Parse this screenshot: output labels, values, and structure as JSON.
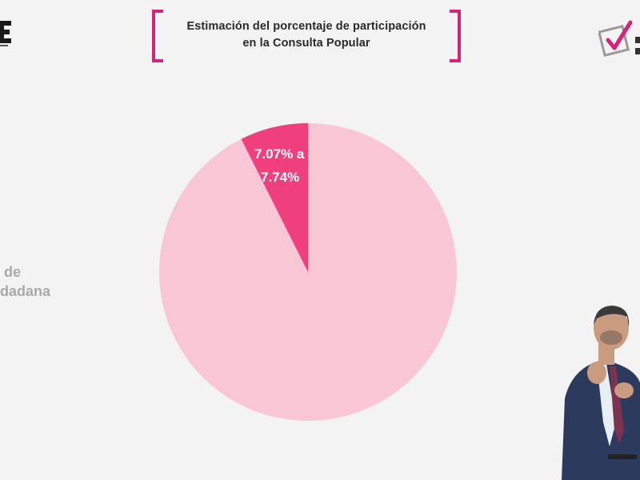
{
  "header": {
    "title_line1": "Estimación del porcentaje de participación",
    "title_line2": "en la Consulta Popular"
  },
  "side_label": {
    "line1": "ntaje de",
    "line2": "n ciudadana"
  },
  "colors": {
    "accent": "#d6247a",
    "pie_main": "#f9c6d6",
    "pie_slice": "#ef3f7d"
  },
  "chart_data": {
    "type": "pie",
    "slices": [
      {
        "label_line1": "7.07% a",
        "label_line2": "7.74%",
        "value": 7.4,
        "color": "#ef3f7d"
      },
      {
        "value": 92.6,
        "color": "#f9c6d6"
      }
    ],
    "title": "Estimación del porcentaje de participación en la Consulta Popular"
  }
}
